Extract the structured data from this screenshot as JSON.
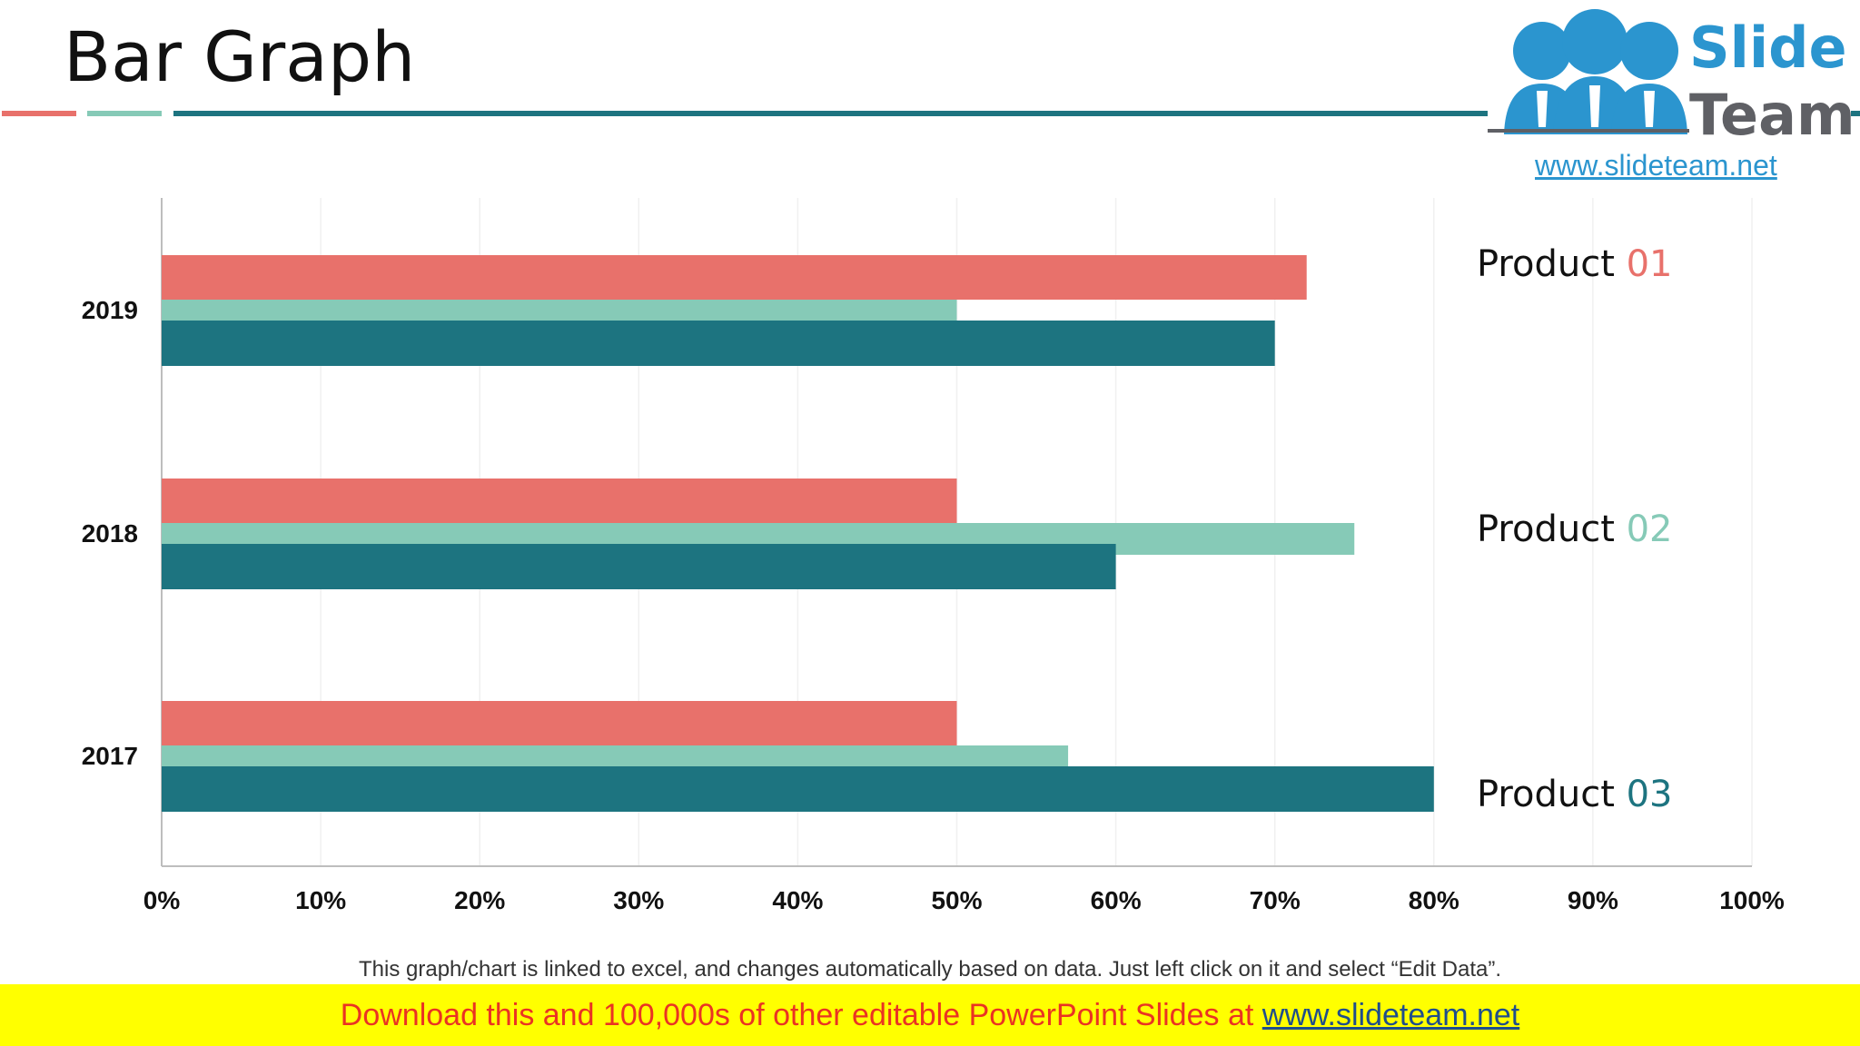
{
  "slide": {
    "title": "Bar Graph",
    "footnote": "This graph/chart is linked to excel, and changes automatically based on data. Just left click on it and select “Edit Data”."
  },
  "logo": {
    "line1": "Slide",
    "line2": "Team",
    "url": "www.slideteam.net"
  },
  "banner": {
    "text": "Download this and 100,000s of other editable PowerPoint Slides at ",
    "link": "www.slideteam.net"
  },
  "legend": [
    {
      "word": "Product",
      "number": "01",
      "color": "#e8716b"
    },
    {
      "word": "Product",
      "number": "02",
      "color": "#86cab7"
    },
    {
      "word": "Product",
      "number": "03",
      "color": "#1d7480"
    }
  ],
  "colors": {
    "accent_red": "#e8716b",
    "accent_mint": "#86cab7",
    "accent_teal": "#1d7480",
    "banner_bg": "#ffff00",
    "banner_text": "#ea3323"
  },
  "chart_data": {
    "type": "bar",
    "orientation": "horizontal",
    "categories": [
      "2019",
      "2018",
      "2017"
    ],
    "series": [
      {
        "name": "Product 01",
        "color": "#e8716b",
        "values": [
          72,
          50,
          50
        ]
      },
      {
        "name": "Product 02",
        "color": "#86cab7",
        "values": [
          50,
          75,
          57
        ]
      },
      {
        "name": "Product 03",
        "color": "#1d7480",
        "values": [
          70,
          60,
          80
        ]
      }
    ],
    "xlim": [
      0,
      100
    ],
    "x_ticks": [
      "0%",
      "10%",
      "20%",
      "30%",
      "40%",
      "50%",
      "60%",
      "70%",
      "80%",
      "90%",
      "100%"
    ],
    "grid": "vertical",
    "legend_position": "right"
  }
}
